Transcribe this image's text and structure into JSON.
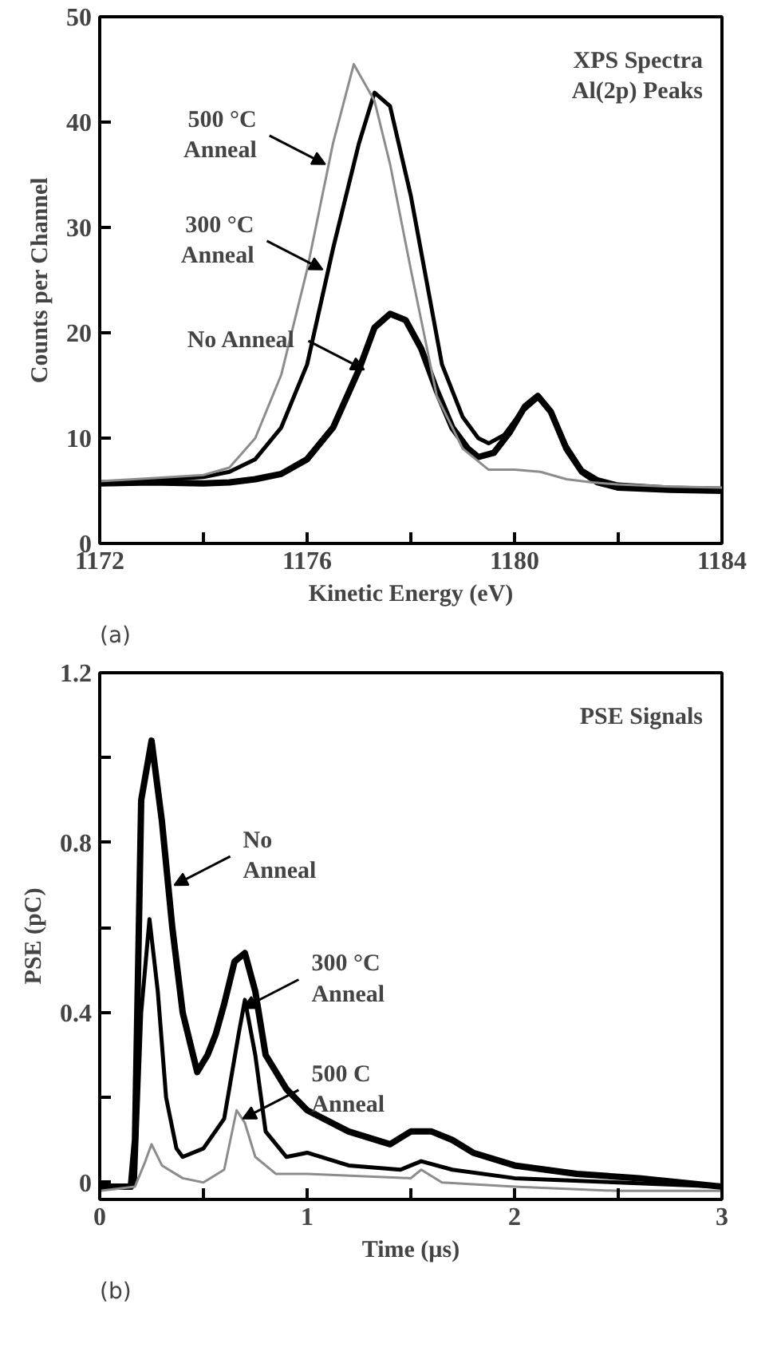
{
  "chart_data": [
    {
      "type": "line",
      "xlabel": "Kinetic Energy (eV)",
      "ylabel": "Counts per Channel",
      "xlim": [
        1172,
        1184
      ],
      "ylim": [
        0,
        50
      ],
      "xticks": [
        1172,
        {
          "value": 1174,
          "label": null
        },
        1176,
        {
          "value": 1178,
          "label": null
        },
        1180,
        {
          "value": 1182,
          "label": null
        },
        1184
      ],
      "yticks": [
        0,
        10,
        20,
        30,
        40,
        50
      ],
      "series": [
        {
          "color": "#000000",
          "x": [
            1172,
            1173,
            1174,
            1174.5,
            1175,
            1175.5,
            1176,
            1176.5,
            1177,
            1177.3,
            1177.6,
            1177.9,
            1178.2,
            1178.5,
            1178.8,
            1179.1,
            1179.3,
            1179.6,
            1179.9,
            1180.2,
            1180.45,
            1180.7,
            1181,
            1181.3,
            1181.6,
            1182,
            1183,
            1184
          ],
          "values": [
            5.7,
            5.8,
            5.7,
            5.8,
            6.1,
            6.6,
            8,
            11,
            16.5,
            20.5,
            21.8,
            21.2,
            18.5,
            14.5,
            11,
            9,
            8.2,
            8.6,
            10.5,
            13,
            14,
            12.5,
            9,
            6.8,
            5.8,
            5.3,
            5.1,
            5
          ]
        },
        {
          "color": "#000000",
          "x": [
            1172,
            1173,
            1174,
            1174.5,
            1175,
            1175.5,
            1176,
            1176.5,
            1177,
            1177.3,
            1177.6,
            1178,
            1178.3,
            1178.6,
            1179,
            1179.3,
            1179.5,
            1179.8,
            1180.1,
            1180.45,
            1180.7,
            1181,
            1181.3,
            1181.6,
            1182,
            1183,
            1184
          ],
          "values": [
            5.8,
            6,
            6.3,
            6.8,
            8,
            11,
            17,
            28,
            38,
            42.8,
            41.5,
            33,
            25,
            17,
            12,
            10,
            9.5,
            10.3,
            12.3,
            13.8,
            12.6,
            9.3,
            7,
            6.1,
            5.6,
            5.3,
            5.2
          ]
        },
        {
          "color": "#8c8c8c",
          "x": [
            1172,
            1173,
            1174,
            1174.5,
            1175,
            1175.5,
            1176,
            1176.5,
            1176.9,
            1177.3,
            1177.6,
            1178,
            1178.5,
            1179,
            1179.5,
            1180,
            1180.5,
            1181,
            1181.5,
            1182,
            1183,
            1184
          ],
          "values": [
            5.9,
            6.2,
            6.5,
            7.2,
            10,
            16,
            26,
            38,
            45.5,
            42,
            36,
            26,
            14,
            9,
            7,
            7,
            6.8,
            6.1,
            5.8,
            5.6,
            5.4,
            5.3
          ]
        }
      ],
      "annotations": [
        "XPS Spectra\nAl(2p) Peaks",
        "(a)",
        {
          "text": "500 °C\nAnneal",
          "x": 1176.35,
          "y": 36
        },
        {
          "text": "300 °C\nAnneal",
          "x": 1176.3,
          "y": 26
        },
        {
          "text": "No Anneal",
          "x": 1177.1,
          "y": 16.5
        }
      ]
    },
    {
      "type": "line",
      "xlabel": "Time (µs)",
      "ylabel": "PSE (pC)",
      "xlim": [
        0,
        3
      ],
      "ylim": [
        -0.04,
        1.2
      ],
      "xticks": [
        0,
        {
          "value": 0.5,
          "label": null
        },
        1,
        {
          "value": 1.5,
          "label": null
        },
        2,
        {
          "value": 2.5,
          "label": null
        },
        3
      ],
      "yticks": [
        0,
        {
          "value": 0.2,
          "label": null
        },
        0.4,
        {
          "value": 0.6,
          "label": null
        },
        0.8,
        {
          "value": 1.0,
          "label": null
        },
        1.2
      ],
      "series": [
        {
          "color": "#000000",
          "x": [
            0,
            0.1,
            0.15,
            0.17,
            0.2,
            0.25,
            0.3,
            0.35,
            0.4,
            0.47,
            0.52,
            0.56,
            0.6,
            0.65,
            0.7,
            0.75,
            0.8,
            0.9,
            1.0,
            1.2,
            1.4,
            1.5,
            1.6,
            1.7,
            1.8,
            2.0,
            2.3,
            2.6,
            3.0
          ],
          "values": [
            -0.01,
            -0.01,
            -0.01,
            0.1,
            0.9,
            1.04,
            0.85,
            0.6,
            0.4,
            0.26,
            0.3,
            0.35,
            0.42,
            0.52,
            0.54,
            0.45,
            0.3,
            0.22,
            0.17,
            0.12,
            0.09,
            0.12,
            0.12,
            0.1,
            0.07,
            0.04,
            0.02,
            0.01,
            -0.01
          ]
        },
        {
          "color": "#000000",
          "x": [
            0,
            0.15,
            0.17,
            0.2,
            0.24,
            0.28,
            0.32,
            0.37,
            0.4,
            0.5,
            0.6,
            0.67,
            0.7,
            0.75,
            0.8,
            0.9,
            1.0,
            1.2,
            1.45,
            1.55,
            1.7,
            2.0,
            2.5,
            3.0
          ],
          "values": [
            -0.01,
            -0.01,
            0,
            0.4,
            0.62,
            0.45,
            0.2,
            0.08,
            0.06,
            0.08,
            0.15,
            0.35,
            0.43,
            0.3,
            0.12,
            0.06,
            0.07,
            0.04,
            0.03,
            0.05,
            0.03,
            0.01,
            0,
            -0.01
          ]
        },
        {
          "color": "#8c8c8c",
          "x": [
            0,
            0.17,
            0.22,
            0.25,
            0.3,
            0.4,
            0.5,
            0.6,
            0.66,
            0.7,
            0.75,
            0.85,
            1.0,
            1.5,
            1.55,
            1.65,
            2.0,
            2.5,
            3.0
          ],
          "values": [
            -0.02,
            -0.01,
            0.05,
            0.09,
            0.04,
            0.01,
            0,
            0.03,
            0.17,
            0.14,
            0.06,
            0.02,
            0.02,
            0.01,
            0.03,
            0,
            -0.01,
            -0.02,
            -0.02
          ]
        }
      ],
      "annotations": [
        "PSE Signals",
        "(b)",
        {
          "text": "No\nAnneal",
          "x": 0.36,
          "y": 0.7
        },
        {
          "text": "300 °C\nAnneal",
          "x": 0.69,
          "y": 0.41
        },
        {
          "text": "500 C\nAnneal",
          "x": 0.69,
          "y": 0.15
        }
      ]
    }
  ]
}
